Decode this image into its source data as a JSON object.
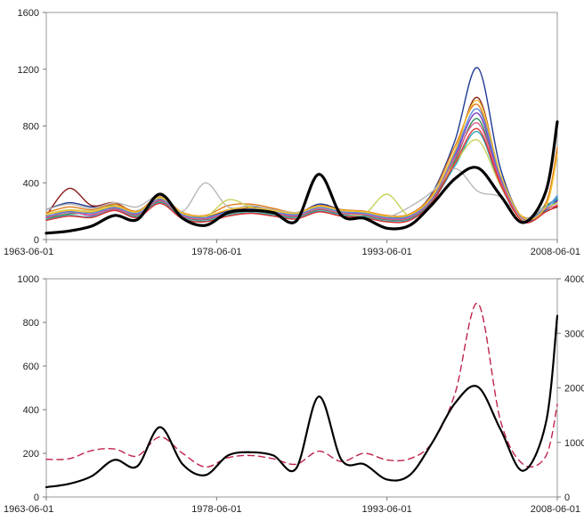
{
  "chart_data": [
    {
      "type": "line",
      "title": "",
      "xlabel": "",
      "ylabel": "",
      "x_ticks": [
        "1963-06-01",
        "1978-06-01",
        "1993-06-01",
        "2008-06-01"
      ],
      "x_range": [
        "1963-06-01",
        "2008-06-01"
      ],
      "ylim": [
        0,
        1600
      ],
      "y_ticks": [
        0,
        400,
        800,
        1200,
        1600
      ],
      "grid": false,
      "legend": "none",
      "x": [
        "1963-06-01",
        "1965-06-01",
        "1967-06-01",
        "1969-06-01",
        "1971-06-01",
        "1973-06-01",
        "1975-06-01",
        "1977-06-01",
        "1979-06-01",
        "1981-06-01",
        "1983-06-01",
        "1985-06-01",
        "1987-06-01",
        "1989-06-01",
        "1991-06-01",
        "1993-06-01",
        "1995-06-01",
        "1997-06-01",
        "1999-06-01",
        "2001-06-01",
        "2003-06-01",
        "2005-06-01",
        "2007-06-01",
        "2008-06-01"
      ],
      "series": [
        {
          "color": "#000000",
          "values": [
            45,
            60,
            95,
            170,
            140,
            320,
            150,
            100,
            190,
            205,
            190,
            130,
            460,
            170,
            150,
            80,
            100,
            250,
            430,
            505,
            310,
            120,
            340,
            830
          ]
        },
        {
          "color": "#1f3a93",
          "values": [
            210,
            260,
            230,
            240,
            200,
            300,
            180,
            160,
            200,
            230,
            210,
            180,
            250,
            210,
            190,
            160,
            170,
            330,
            700,
            1210,
            500,
            150,
            210,
            280
          ]
        },
        {
          "color": "#8b1a1a",
          "values": [
            170,
            360,
            240,
            260,
            190,
            280,
            170,
            150,
            210,
            220,
            200,
            170,
            230,
            200,
            180,
            150,
            160,
            300,
            620,
            1000,
            450,
            140,
            200,
            230
          ]
        },
        {
          "color": "#e07b1a",
          "values": [
            190,
            230,
            210,
            250,
            200,
            300,
            190,
            170,
            240,
            250,
            220,
            190,
            240,
            210,
            200,
            170,
            180,
            320,
            660,
            950,
            430,
            160,
            260,
            650
          ]
        },
        {
          "color": "#2e8b57",
          "values": [
            150,
            180,
            190,
            220,
            170,
            270,
            160,
            140,
            180,
            200,
            180,
            160,
            210,
            180,
            170,
            140,
            150,
            280,
            560,
            850,
            400,
            150,
            240,
            290
          ]
        },
        {
          "color": "#7f3fbf",
          "values": [
            160,
            200,
            170,
            230,
            180,
            290,
            170,
            150,
            190,
            210,
            190,
            170,
            220,
            190,
            180,
            150,
            160,
            290,
            590,
            890,
            420,
            140,
            220,
            270
          ]
        },
        {
          "color": "#2aa7b8",
          "values": [
            140,
            170,
            160,
            210,
            160,
            260,
            150,
            130,
            170,
            190,
            170,
            150,
            200,
            170,
            160,
            130,
            140,
            270,
            520,
            760,
            380,
            130,
            200,
            300
          ]
        },
        {
          "color": "#b8b8b8",
          "values": [
            210,
            250,
            220,
            260,
            230,
            310,
            200,
            400,
            230,
            240,
            210,
            190,
            230,
            200,
            190,
            160,
            230,
            340,
            500,
            340,
            300,
            150,
            230,
            250
          ]
        },
        {
          "color": "#c8d15a",
          "values": [
            180,
            210,
            200,
            240,
            190,
            290,
            180,
            160,
            280,
            230,
            200,
            180,
            220,
            190,
            180,
            320,
            170,
            300,
            540,
            700,
            380,
            140,
            220,
            260
          ]
        },
        {
          "color": "#e05a8a",
          "values": [
            155,
            190,
            175,
            215,
            175,
            275,
            165,
            145,
            185,
            205,
            185,
            165,
            215,
            185,
            175,
            145,
            155,
            285,
            580,
            820,
            410,
            145,
            215,
            240
          ]
        },
        {
          "color": "#5a8ae0",
          "values": [
            165,
            195,
            185,
            225,
            185,
            285,
            175,
            155,
            195,
            215,
            195,
            175,
            225,
            195,
            185,
            155,
            165,
            295,
            610,
            920,
            440,
            150,
            225,
            310
          ]
        },
        {
          "color": "#f2c12e",
          "values": [
            175,
            205,
            195,
            235,
            195,
            295,
            185,
            165,
            210,
            225,
            205,
            185,
            235,
            205,
            195,
            165,
            175,
            305,
            630,
            980,
            460,
            155,
            235,
            600
          ]
        },
        {
          "color": "#e03030",
          "values": [
            135,
            165,
            155,
            205,
            155,
            255,
            145,
            125,
            165,
            185,
            165,
            145,
            195,
            165,
            155,
            125,
            135,
            265,
            540,
            780,
            390,
            125,
            195,
            240
          ]
        }
      ]
    },
    {
      "type": "line",
      "title": "",
      "xlabel": "",
      "ylabel": "",
      "x_ticks": [
        "1963-06-01",
        "1978-06-01",
        "1993-06-01",
        "2008-06-01"
      ],
      "x_range": [
        "1963-06-01",
        "2008-06-01"
      ],
      "ylim": [
        0,
        1000
      ],
      "y_ticks": [
        0,
        200,
        400,
        600,
        800,
        1000
      ],
      "y2lim": [
        0,
        4000
      ],
      "y2_ticks": [
        0,
        1000,
        2000,
        3000,
        4000
      ],
      "grid": false,
      "legend": "none",
      "x": [
        "1963-06-01",
        "1965-06-01",
        "1967-06-01",
        "1969-06-01",
        "1971-06-01",
        "1973-06-01",
        "1975-06-01",
        "1977-06-01",
        "1979-06-01",
        "1981-06-01",
        "1983-06-01",
        "1985-06-01",
        "1987-06-01",
        "1989-06-01",
        "1991-06-01",
        "1993-06-01",
        "1995-06-01",
        "1997-06-01",
        "1999-06-01",
        "2001-06-01",
        "2003-06-01",
        "2005-06-01",
        "2007-06-01",
        "2008-06-01"
      ],
      "series": [
        {
          "axis": "left",
          "color": "#000000",
          "dash": false,
          "values": [
            45,
            60,
            95,
            170,
            140,
            320,
            150,
            100,
            190,
            205,
            190,
            130,
            460,
            170,
            150,
            80,
            100,
            250,
            430,
            505,
            310,
            120,
            340,
            830
          ]
        },
        {
          "axis": "right",
          "color": "#c0234a",
          "dash": true,
          "values": [
            690,
            700,
            850,
            880,
            750,
            1100,
            800,
            550,
            720,
            760,
            700,
            600,
            840,
            650,
            800,
            680,
            700,
            1000,
            1900,
            3550,
            1400,
            600,
            750,
            1700
          ]
        }
      ]
    }
  ]
}
